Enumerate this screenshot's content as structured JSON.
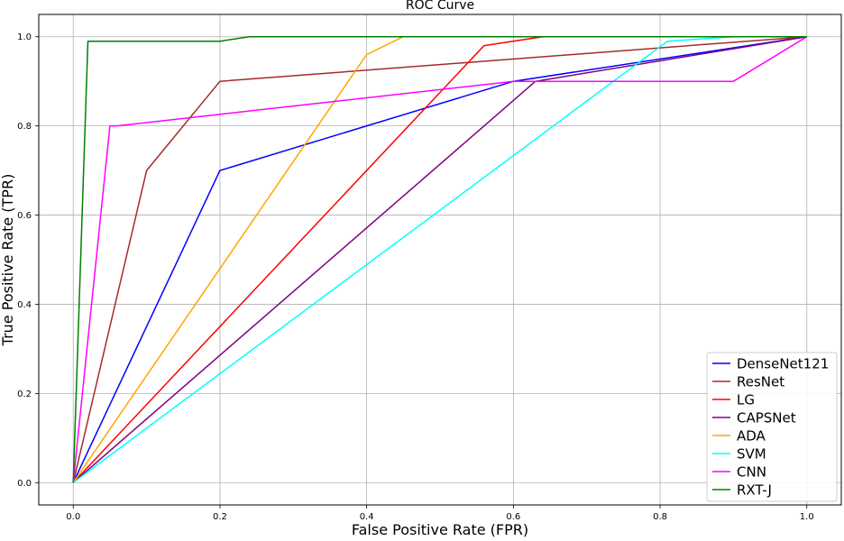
{
  "chart_data": {
    "type": "line",
    "title": "ROC Curve",
    "xlabel": "False Positive Rate (FPR)",
    "ylabel": "True Positive Rate (TPR)",
    "xlim": [
      -0.047,
      1.047
    ],
    "ylim": [
      -0.05,
      1.05
    ],
    "xticks": [
      "0.0",
      "0.2",
      "0.4",
      "0.6",
      "0.8",
      "1.0"
    ],
    "yticks": [
      "0.0",
      "0.2",
      "0.4",
      "0.6",
      "0.8",
      "1.0"
    ],
    "grid": true,
    "legend_position": "lower-right",
    "series": [
      {
        "name": "DenseNet121",
        "color": "#0000ff",
        "x": [
          0,
          0.2,
          0.6,
          1.0
        ],
        "y": [
          0,
          0.7,
          0.9,
          1.0
        ]
      },
      {
        "name": "ResNet",
        "color": "#a52a2a",
        "x": [
          0,
          0.1,
          0.2,
          1.0
        ],
        "y": [
          0,
          0.7,
          0.9,
          1.0
        ]
      },
      {
        "name": "LG",
        "color": "#ff0000",
        "x": [
          0,
          0.56,
          0.64,
          1.0
        ],
        "y": [
          0,
          0.98,
          1.0,
          1.0
        ]
      },
      {
        "name": "CAPSNet",
        "color": "#800080",
        "x": [
          0,
          0.63,
          1.0
        ],
        "y": [
          0,
          0.9,
          1.0
        ]
      },
      {
        "name": "ADA",
        "color": "#ffa500",
        "x": [
          0,
          0.4,
          0.45,
          1.0
        ],
        "y": [
          0,
          0.96,
          1.0,
          1.0
        ]
      },
      {
        "name": "SVM",
        "color": "#00ffff",
        "x": [
          0,
          0.81,
          0.9,
          1.0
        ],
        "y": [
          0,
          0.99,
          1.0,
          1.0
        ]
      },
      {
        "name": "CNN",
        "color": "#ff00ff",
        "x": [
          0,
          0.05,
          0.06,
          0.6,
          0.9,
          1.0
        ],
        "y": [
          0,
          0.8,
          0.8,
          0.9,
          0.9,
          1.0
        ]
      },
      {
        "name": "RXT-J",
        "color": "#008000",
        "x": [
          0,
          0.02,
          0.2,
          0.24,
          1.0
        ],
        "y": [
          0,
          0.99,
          0.99,
          1.0,
          1.0
        ]
      }
    ]
  }
}
